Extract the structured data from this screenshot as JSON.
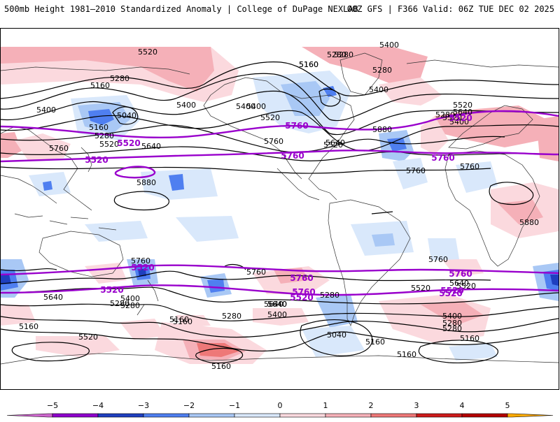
{
  "header": {
    "title_left": "500mb Height 1981–2010 Standardized Anomaly | College of DuPage NEXLAB",
    "title_right": "00Z GFS | F366 Valid: 06Z TUE DEC 02 2025"
  },
  "colors": {
    "neg5": "#cc66cc",
    "neg4": "#8f00cc",
    "neg3": "#1f3fbf",
    "neg2": "#4f7ff0",
    "neg1": "#a9c8f5",
    "neg0": "#d9e8fb",
    "pos0": "#fbd9de",
    "pos1": "#f5b0b8",
    "pos2": "#ee7878",
    "pos3": "#cc1b1b",
    "pos4": "#b40000",
    "pos5": "#ffaa00",
    "contour": "#000000",
    "thick_contour": "#9900cc",
    "coast": "#333333"
  },
  "contour_labels": [
    {
      "text": "5520"
    },
    {
      "text": "5400"
    },
    {
      "text": "5280"
    },
    {
      "text": "5160"
    },
    {
      "text": "5280"
    },
    {
      "text": "5400"
    },
    {
      "text": "5160"
    },
    {
      "text": "5040"
    },
    {
      "text": "5400"
    },
    {
      "text": "5160"
    },
    {
      "text": "5280"
    },
    {
      "text": "5520"
    },
    {
      "text": "5400"
    },
    {
      "text": "5520"
    },
    {
      "text": "5640"
    },
    {
      "text": "5760"
    },
    {
      "text": "5880"
    },
    {
      "text": "5760"
    },
    {
      "text": "5640"
    },
    {
      "text": "5520"
    },
    {
      "text": "5280"
    },
    {
      "text": "5400"
    },
    {
      "text": "5640"
    },
    {
      "text": "5760"
    },
    {
      "text": "5880"
    },
    {
      "text": "5400"
    },
    {
      "text": "5280"
    },
    {
      "text": "5760"
    },
    {
      "text": "5520"
    },
    {
      "text": "5400"
    },
    {
      "text": "5280"
    },
    {
      "text": "5160"
    },
    {
      "text": "5160"
    },
    {
      "text": "5160"
    },
    {
      "text": "5520"
    },
    {
      "text": "5640"
    },
    {
      "text": "5400"
    },
    {
      "text": "5280"
    },
    {
      "text": "5160"
    },
    {
      "text": "5040"
    },
    {
      "text": "5760"
    },
    {
      "text": "5640"
    },
    {
      "text": "5400"
    },
    {
      "text": "5280"
    },
    {
      "text": "5160"
    },
    {
      "text": "5160"
    },
    {
      "text": "5160"
    },
    {
      "text": "5520"
    },
    {
      "text": "5760"
    },
    {
      "text": "5280"
    },
    {
      "text": "5400"
    },
    {
      "text": "5520"
    },
    {
      "text": "5640"
    },
    {
      "text": "5640"
    },
    {
      "text": "5280"
    },
    {
      "text": "5160"
    },
    {
      "text": "5280"
    },
    {
      "text": "5760"
    },
    {
      "text": "5640"
    },
    {
      "text": "5280"
    },
    {
      "text": "5520"
    },
    {
      "text": "5880"
    }
  ],
  "purple_labels": [
    {
      "text": "5520"
    },
    {
      "text": "5760"
    },
    {
      "text": "5520"
    },
    {
      "text": "5760"
    },
    {
      "text": "5520"
    },
    {
      "text": "5760"
    },
    {
      "text": "5520"
    },
    {
      "text": "5760"
    },
    {
      "text": "5520"
    },
    {
      "text": "5760"
    },
    {
      "text": "5520"
    },
    {
      "text": "5520"
    },
    {
      "text": "5760"
    },
    {
      "text": "5520"
    }
  ],
  "colorbar": {
    "ticks": [
      "−5",
      "−4",
      "−3",
      "−2",
      "−1",
      "0",
      "1",
      "2",
      "3",
      "4",
      "5"
    ]
  }
}
